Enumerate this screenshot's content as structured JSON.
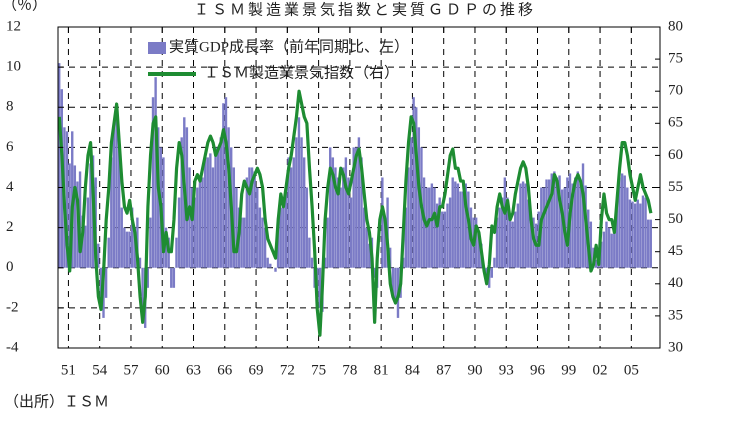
{
  "chart_data": {
    "type": "combo",
    "title": "ＩＳＭ製造業景気指数と実質ＧＤＰの推移",
    "ylabel": "（％）",
    "source": "（出所）ＩＳＭ",
    "xlim": [
      1950,
      2007.75
    ],
    "xticks": [
      {
        "value": 1951,
        "label": "51"
      },
      {
        "value": 1954,
        "label": "54"
      },
      {
        "value": 1957,
        "label": "57"
      },
      {
        "value": 1960,
        "label": "60"
      },
      {
        "value": 1963,
        "label": "63"
      },
      {
        "value": 1966,
        "label": "66"
      },
      {
        "value": 1969,
        "label": "69"
      },
      {
        "value": 1972,
        "label": "72"
      },
      {
        "value": 1975,
        "label": "75"
      },
      {
        "value": 1978,
        "label": "78"
      },
      {
        "value": 1981,
        "label": "81"
      },
      {
        "value": 1984,
        "label": "84"
      },
      {
        "value": 1987,
        "label": "87"
      },
      {
        "value": 1990,
        "label": "90"
      },
      {
        "value": 1993,
        "label": "93"
      },
      {
        "value": 1996,
        "label": "96"
      },
      {
        "value": 1999,
        "label": "99"
      },
      {
        "value": 2002,
        "label": "02"
      },
      {
        "value": 2005,
        "label": "05"
      }
    ],
    "ylim": [
      -4,
      12
    ],
    "yticks": [
      -4,
      -2,
      0,
      2,
      4,
      6,
      8,
      10,
      12
    ],
    "y2lim": [
      30,
      80
    ],
    "y2ticks": [
      30,
      35,
      40,
      45,
      50,
      55,
      60,
      65,
      70,
      75,
      80
    ],
    "grid": true,
    "x": [
      1950,
      1950.25,
      1950.5,
      1950.75,
      1951,
      1951.25,
      1951.5,
      1951.75,
      1952,
      1952.25,
      1952.5,
      1952.75,
      1953,
      1953.25,
      1953.5,
      1953.75,
      1954,
      1954.25,
      1954.5,
      1954.75,
      1955,
      1955.25,
      1955.5,
      1955.75,
      1956,
      1956.25,
      1956.5,
      1956.75,
      1957,
      1957.25,
      1957.5,
      1957.75,
      1958,
      1958.25,
      1958.5,
      1958.75,
      1959,
      1959.25,
      1959.5,
      1959.75,
      1960,
      1960.25,
      1960.5,
      1960.75,
      1961,
      1961.25,
      1961.5,
      1961.75,
      1962,
      1962.25,
      1962.5,
      1962.75,
      1963,
      1963.25,
      1963.5,
      1963.75,
      1964,
      1964.25,
      1964.5,
      1964.75,
      1965,
      1965.25,
      1965.5,
      1965.75,
      1966,
      1966.25,
      1966.5,
      1966.75,
      1967,
      1967.25,
      1967.5,
      1967.75,
      1968,
      1968.25,
      1968.5,
      1968.75,
      1969,
      1969.25,
      1969.5,
      1969.75,
      1970,
      1970.25,
      1970.5,
      1970.75,
      1971,
      1971.25,
      1971.5,
      1971.75,
      1972,
      1972.25,
      1972.5,
      1972.75,
      1973,
      1973.25,
      1973.5,
      1973.75,
      1974,
      1974.25,
      1974.5,
      1974.75,
      1975,
      1975.25,
      1975.5,
      1975.75,
      1976,
      1976.25,
      1976.5,
      1976.75,
      1977,
      1977.25,
      1977.5,
      1977.75,
      1978,
      1978.25,
      1978.5,
      1978.75,
      1979,
      1979.25,
      1979.5,
      1979.75,
      1980,
      1980.25,
      1980.5,
      1980.75,
      1981,
      1981.25,
      1981.5,
      1981.75,
      1982,
      1982.25,
      1982.5,
      1982.75,
      1983,
      1983.25,
      1983.5,
      1983.75,
      1984,
      1984.25,
      1984.5,
      1984.75,
      1985,
      1985.25,
      1985.5,
      1985.75,
      1986,
      1986.25,
      1986.5,
      1986.75,
      1987,
      1987.25,
      1987.5,
      1987.75,
      1988,
      1988.25,
      1988.5,
      1988.75,
      1989,
      1989.25,
      1989.5,
      1989.75,
      1990,
      1990.25,
      1990.5,
      1990.75,
      1991,
      1991.25,
      1991.5,
      1991.75,
      1992,
      1992.25,
      1992.5,
      1992.75,
      1993,
      1993.25,
      1993.5,
      1993.75,
      1994,
      1994.25,
      1994.5,
      1994.75,
      1995,
      1995.25,
      1995.5,
      1995.75,
      1996,
      1996.25,
      1996.5,
      1996.75,
      1997,
      1997.25,
      1997.5,
      1997.75,
      1998,
      1998.25,
      1998.5,
      1998.75,
      1999,
      1999.25,
      1999.5,
      1999.75,
      2000,
      2000.25,
      2000.5,
      2000.75,
      2001,
      2001.25,
      2001.5,
      2001.75,
      2002,
      2002.25,
      2002.5,
      2002.75,
      2003,
      2003.25,
      2003.5,
      2003.75,
      2004,
      2004.25,
      2004.5,
      2004.75,
      2005,
      2005.25,
      2005.5,
      2005.75,
      2006,
      2006.25,
      2006.5,
      2006.75
    ],
    "series": [
      {
        "name": "実質GDP成長率（前年同期比、左）",
        "type": "bar",
        "color": "#7b7bc6",
        "values": [
          10.2,
          8.9,
          7.0,
          6.8,
          5.2,
          6.8,
          5.1,
          4.3,
          4.8,
          2.6,
          2.1,
          3.5,
          5.2,
          5.6,
          4.5,
          1.2,
          -1.5,
          -2.5,
          -1.5,
          1.5,
          5.5,
          7.0,
          7.7,
          6.5,
          3.0,
          2.0,
          1.8,
          1.8,
          3.0,
          2.0,
          2.5,
          0.5,
          -2.5,
          -3.0,
          -1.0,
          2.5,
          8.5,
          9.5,
          7.0,
          6.0,
          5.5,
          2.0,
          1.5,
          -1.0,
          -1.0,
          1.5,
          3.5,
          6.5,
          7.5,
          7.0,
          5.0,
          4.0,
          3.5,
          4.0,
          4.5,
          4.5,
          5.5,
          5.5,
          5.7,
          5.0,
          6.0,
          6.0,
          6.5,
          8.2,
          8.5,
          7.0,
          6.0,
          5.0,
          4.0,
          3.0,
          2.5,
          2.5,
          4.5,
          5.0,
          5.0,
          4.8,
          4.0,
          3.0,
          2.5,
          2.0,
          0.5,
          0.2,
          0.0,
          -0.2,
          2.5,
          3.0,
          3.0,
          4.0,
          5.5,
          5.0,
          5.5,
          6.5,
          7.5,
          6.5,
          5.5,
          4.0,
          1.5,
          0.5,
          -1.0,
          -2.0,
          -2.0,
          -2.2,
          0.5,
          2.5,
          6.0,
          5.5,
          5.0,
          4.5,
          4.0,
          5.0,
          5.5,
          4.5,
          3.5,
          6.0,
          6.0,
          6.5,
          5.5,
          3.0,
          2.0,
          1.2,
          1.5,
          -0.5,
          -1.0,
          0.0,
          4.5,
          2.5,
          3.5,
          1.0,
          -1.5,
          -1.8,
          -2.5,
          -1.5,
          0.5,
          3.0,
          5.0,
          6.5,
          8.5,
          8.0,
          7.0,
          6.0,
          4.5,
          4.0,
          4.0,
          4.2,
          4.0,
          3.2,
          3.5,
          2.8,
          2.8,
          3.2,
          3.5,
          4.5,
          4.3,
          4.2,
          3.8,
          3.8,
          4.2,
          3.8,
          3.0,
          2.5,
          2.5,
          1.8,
          1.2,
          0.0,
          -0.8,
          -1.0,
          -0.5,
          0.5,
          2.5,
          3.0,
          3.5,
          4.5,
          3.5,
          2.5,
          2.3,
          2.8,
          3.2,
          4.2,
          4.3,
          4.2,
          3.4,
          2.3,
          2.5,
          2.2,
          2.8,
          4.0,
          4.0,
          4.4,
          4.4,
          4.7,
          4.8,
          4.5,
          4.6,
          3.9,
          4.0,
          4.5,
          4.7,
          4.2,
          4.5,
          4.8,
          4.2,
          5.2,
          4.1,
          2.9,
          2.3,
          1.0,
          0.4,
          0.2,
          1.3,
          1.8,
          2.3,
          2.0,
          1.7,
          2.3,
          3.4,
          4.5,
          4.7,
          4.6,
          4.0,
          3.4,
          3.3,
          3.2,
          3.4,
          3.2,
          3.6,
          3.5,
          2.4,
          2.4
        ]
      },
      {
        "name": "ＩＳＭ製造業景気指数（右）",
        "type": "line",
        "axis": "y2",
        "color": "#1e8c32",
        "values": [
          66,
          60,
          52,
          46,
          42,
          52,
          55,
          53,
          45,
          48,
          55,
          60,
          62,
          54,
          44,
          38,
          36,
          42,
          50,
          55,
          62,
          65,
          68,
          62,
          56,
          52,
          51,
          53,
          50,
          48,
          44,
          38,
          34,
          38,
          52,
          60,
          65,
          66,
          55,
          52,
          45,
          48,
          45,
          45,
          50,
          58,
          62,
          60,
          55,
          50,
          52,
          50,
          56,
          57,
          56,
          58,
          60,
          62,
          63,
          62,
          60,
          61,
          62,
          64,
          62,
          58,
          52,
          45,
          45,
          48,
          54,
          56,
          55,
          54,
          56,
          57,
          58,
          57,
          55,
          50,
          47,
          46,
          45,
          44,
          50,
          54,
          52,
          55,
          58,
          60,
          63,
          66,
          70,
          68,
          66,
          65,
          58,
          52,
          45,
          36,
          32,
          40,
          50,
          55,
          58,
          57,
          55,
          54,
          58,
          57,
          55,
          54,
          56,
          58,
          60,
          61,
          58,
          54,
          50,
          48,
          44,
          34,
          44,
          50,
          52,
          50,
          46,
          40,
          38,
          37,
          38,
          40,
          48,
          56,
          62,
          66,
          65,
          60,
          55,
          52,
          50,
          49,
          50,
          50,
          51,
          49,
          52,
          52,
          54,
          57,
          60,
          61,
          58,
          58,
          56,
          56,
          52,
          50,
          47,
          46,
          49,
          48,
          45,
          42,
          40,
          43,
          49,
          48,
          52,
          54,
          52,
          51,
          53,
          50,
          51,
          54,
          56,
          58,
          59,
          58,
          55,
          50,
          47,
          46,
          46,
          50,
          51,
          52,
          53,
          54,
          57,
          56,
          53,
          51,
          48,
          46,
          51,
          54,
          56,
          57,
          56,
          54,
          50,
          46,
          42,
          43,
          46,
          43,
          50,
          54,
          51,
          50,
          50,
          48,
          53,
          58,
          62,
          62,
          60,
          57,
          55,
          53,
          55,
          57,
          55,
          54,
          53,
          51
        ]
      }
    ]
  }
}
